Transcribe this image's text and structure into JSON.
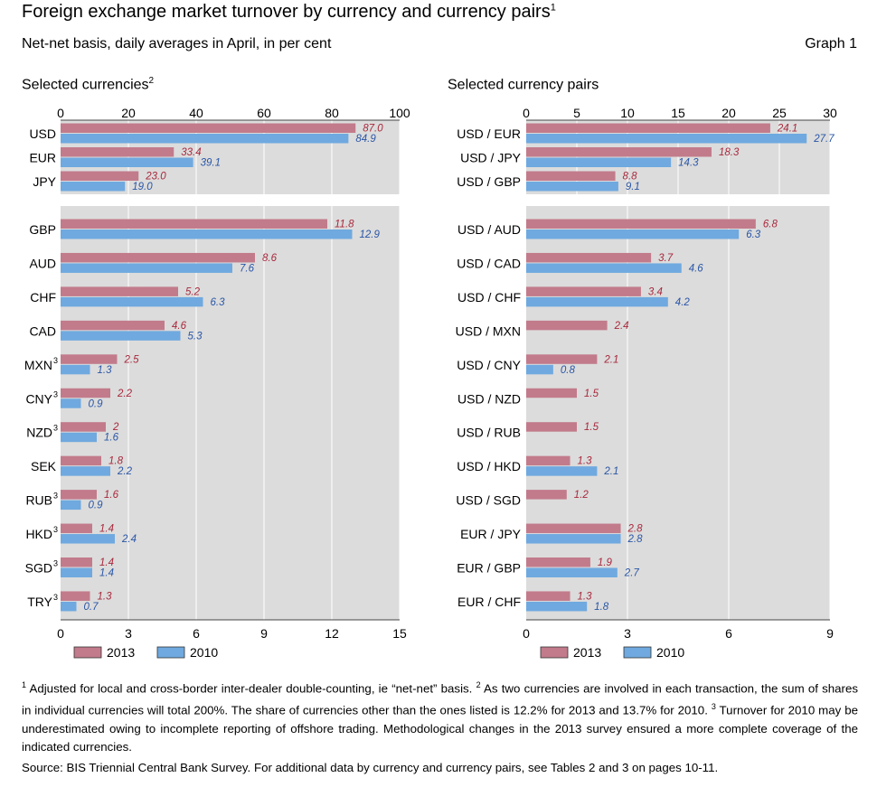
{
  "header": {
    "title": "Foreign exchange market turnover by currency and currency pairs",
    "title_note": "1",
    "subtitle": "Net-net basis, daily averages in April, in per cent",
    "graph_label": "Graph 1"
  },
  "chart_data": [
    {
      "type": "bar",
      "title": "Selected currencies",
      "title_note": "2",
      "orientation": "horizontal",
      "legend_position": "bottom",
      "colors": {
        "2013": "#c27b8b",
        "2010": "#6fa9df",
        "background": "#dcdcdc"
      },
      "top_section": {
        "xlim": [
          0,
          100
        ],
        "axis_position": "top",
        "ticks": [
          "0",
          "20",
          "40",
          "60",
          "80",
          "100"
        ],
        "categories": [
          "USD",
          "EUR",
          "JPY"
        ],
        "notes": [
          "",
          "",
          ""
        ],
        "series": [
          {
            "name": "2013",
            "values": [
              87.0,
              33.4,
              23.0
            ],
            "labels": [
              "87.0",
              "33.4",
              "23.0"
            ]
          },
          {
            "name": "2010",
            "values": [
              84.9,
              39.1,
              19.0
            ],
            "labels": [
              "84.9",
              "39.1",
              "19.0"
            ]
          }
        ]
      },
      "bottom_section": {
        "xlim": [
          0,
          15
        ],
        "axis_position": "bottom",
        "ticks": [
          "0",
          "3",
          "6",
          "9",
          "12",
          "15"
        ],
        "categories": [
          "GBP",
          "AUD",
          "CHF",
          "CAD",
          "MXN",
          "CNY",
          "NZD",
          "SEK",
          "RUB",
          "HKD",
          "SGD",
          "TRY"
        ],
        "notes": [
          "",
          "",
          "",
          "",
          "3",
          "3",
          "3",
          "",
          "3",
          "3",
          "3",
          "3"
        ],
        "series": [
          {
            "name": "2013",
            "values": [
              11.8,
              8.6,
              5.2,
              4.6,
              2.5,
              2.2,
              2,
              1.8,
              1.6,
              1.4,
              1.4,
              1.3
            ],
            "labels": [
              "11.8",
              "8.6",
              "5.2",
              "4.6",
              "2.5",
              "2.2",
              "2",
              "1.8",
              "1.6",
              "1.4",
              "1.4",
              "1.3"
            ]
          },
          {
            "name": "2010",
            "values": [
              12.9,
              7.6,
              6.3,
              5.3,
              1.3,
              0.9,
              1.6,
              2.2,
              0.9,
              2.4,
              1.4,
              0.7
            ],
            "labels": [
              "12.9",
              "7.6",
              "6.3",
              "5.3",
              "1.3",
              "0.9",
              "1.6",
              "2.2",
              "0.9",
              "2.4",
              "1.4",
              "0.7"
            ]
          }
        ]
      }
    },
    {
      "type": "bar",
      "title": "Selected currency pairs",
      "title_note": "",
      "orientation": "horizontal",
      "legend_position": "bottom",
      "colors": {
        "2013": "#c27b8b",
        "2010": "#6fa9df",
        "background": "#dcdcdc"
      },
      "top_section": {
        "xlim": [
          0,
          30
        ],
        "axis_position": "top",
        "ticks": [
          "0",
          "5",
          "10",
          "15",
          "20",
          "25",
          "30"
        ],
        "categories": [
          "USD / EUR",
          "USD / JPY",
          "USD / GBP"
        ],
        "notes": [
          "",
          "",
          ""
        ],
        "series": [
          {
            "name": "2013",
            "values": [
              24.1,
              18.3,
              8.8
            ],
            "labels": [
              "24.1",
              "18.3",
              "8.8"
            ]
          },
          {
            "name": "2010",
            "values": [
              27.7,
              14.3,
              9.1
            ],
            "labels": [
              "27.7",
              "14.3",
              "9.1"
            ]
          }
        ]
      },
      "bottom_section": {
        "xlim": [
          0,
          9
        ],
        "axis_position": "bottom",
        "ticks": [
          "0",
          "3",
          "6",
          "9"
        ],
        "categories": [
          "USD / AUD",
          "USD / CAD",
          "USD / CHF",
          "USD / MXN",
          "USD / CNY",
          "USD / NZD",
          "USD / RUB",
          "USD / HKD",
          "USD / SGD",
          "EUR / JPY",
          "EUR / GBP",
          "EUR / CHF"
        ],
        "notes": [
          "",
          "",
          "",
          "",
          "",
          "",
          "",
          "",
          "",
          "",
          "",
          ""
        ],
        "series": [
          {
            "name": "2013",
            "values": [
              6.8,
              3.7,
              3.4,
              2.4,
              2.1,
              1.5,
              1.5,
              1.3,
              1.2,
              2.8,
              1.9,
              1.3
            ],
            "labels": [
              "6.8",
              "3.7",
              "3.4",
              "2.4",
              "2.1",
              "1.5",
              "1.5",
              "1.3",
              "1.2",
              "2.8",
              "1.9",
              "1.3"
            ]
          },
          {
            "name": "2010",
            "values": [
              6.3,
              4.6,
              4.2,
              null,
              0.8,
              null,
              null,
              2.1,
              null,
              2.8,
              2.7,
              1.8
            ],
            "labels": [
              "6.3",
              "4.6",
              "4.2",
              "",
              "0.8",
              "",
              "",
              "2.1",
              "",
              "2.8",
              "2.7",
              "1.8"
            ]
          }
        ]
      }
    }
  ],
  "footnotes": {
    "n1_mark": "1",
    "n1": "Adjusted for local and cross-border inter-dealer double-counting, ie “net-net” basis.",
    "n2_mark": "2",
    "n2": "As two currencies are involved in each transaction, the sum of shares in individual currencies will total 200%. The share of currencies other than the ones listed is 12.2% for 2013 and 13.7% for 2010.",
    "n3_mark": "3",
    "n3": "Turnover for 2010 may be underestimated owing to incomplete reporting of offshore trading. Methodological changes in the 2013 survey ensured a more complete coverage of the indicated currencies.",
    "source": "Source: BIS Triennial Central Bank Survey. For additional data by currency and currency pairs, see Tables 2 and 3 on pages 10-11."
  }
}
